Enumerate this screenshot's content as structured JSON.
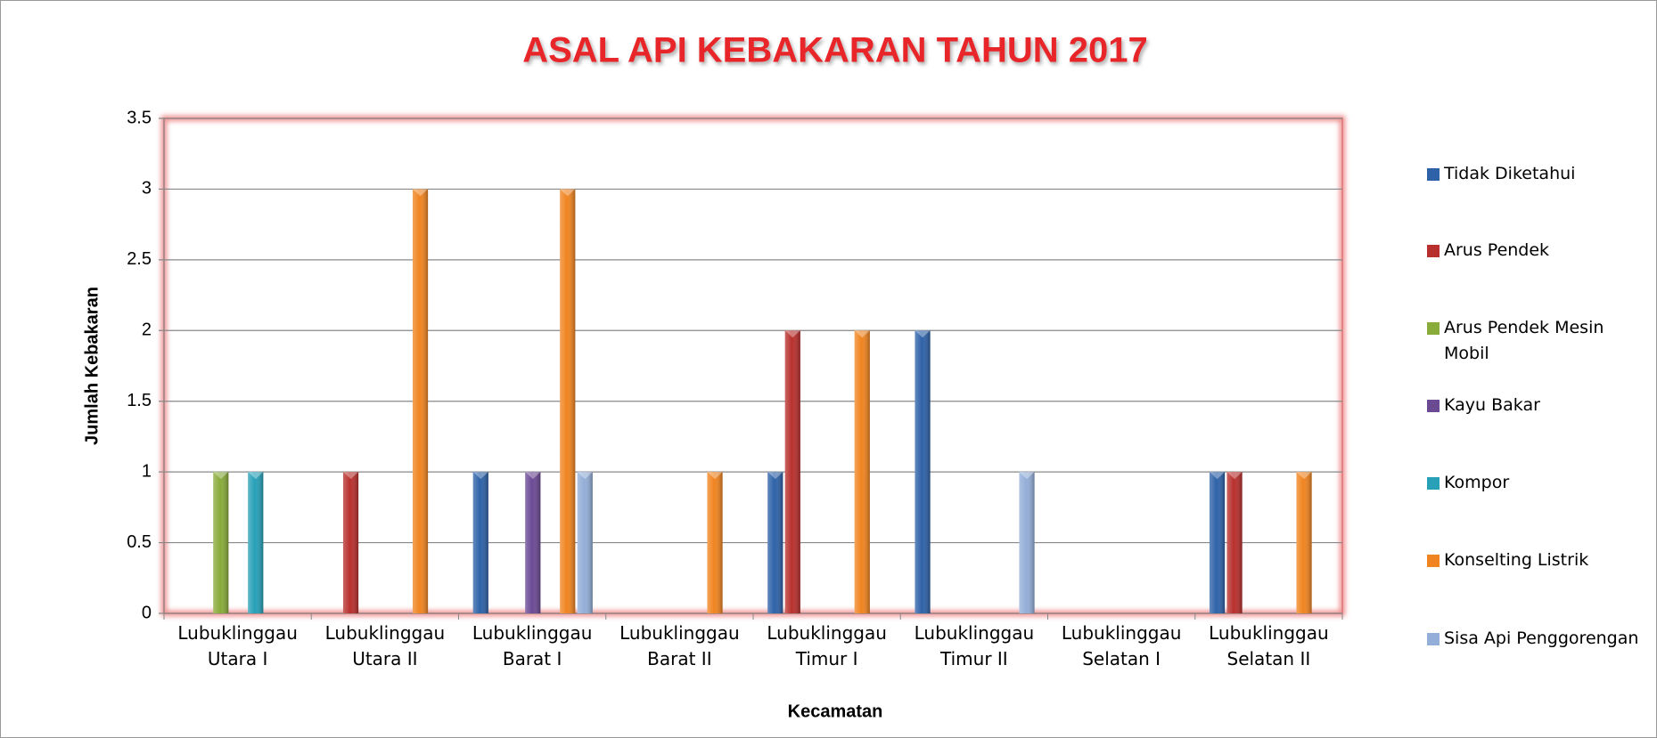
{
  "chart_data": {
    "type": "bar",
    "title": "ASAL API KEBAKARAN TAHUN 2017",
    "x_label": "Kecamatan",
    "y_label": "Jumlah Kebakaran",
    "categories": [
      "Lubuklinggau Utara I",
      "Lubuklinggau Utara II",
      "Lubuklinggau Barat I",
      "Lubuklinggau Barat II",
      "Lubuklinggau Timur I",
      "Lubuklinggau Timur II",
      "Lubuklinggau Selatan I",
      "Lubuklinggau Selatan II"
    ],
    "series": [
      {
        "name": "Tidak Diketahui",
        "color": "#2e62a8",
        "values": [
          0,
          0,
          1,
          0,
          1,
          2,
          0,
          1
        ]
      },
      {
        "name": "Arus Pendek",
        "color": "#b8302d",
        "values": [
          0,
          1,
          0,
          0,
          2,
          0,
          0,
          1
        ]
      },
      {
        "name": "Arus Pendek Mesin Mobil",
        "color": "#88ab3a",
        "values": [
          1,
          0,
          0,
          0,
          0,
          0,
          0,
          0
        ]
      },
      {
        "name": "Kayu Bakar",
        "color": "#6b4a94",
        "values": [
          0,
          0,
          1,
          0,
          0,
          0,
          0,
          0
        ]
      },
      {
        "name": "Kompor",
        "color": "#27a0b8",
        "values": [
          1,
          0,
          0,
          0,
          0,
          0,
          0,
          0
        ]
      },
      {
        "name": "Konselting Listrik",
        "color": "#f08420",
        "values": [
          0,
          3,
          3,
          1,
          2,
          0,
          0,
          1
        ]
      },
      {
        "name": "Sisa Api Penggorengan",
        "color": "#93aed8",
        "values": [
          0,
          0,
          1,
          0,
          0,
          1,
          0,
          0
        ]
      }
    ],
    "ylim": [
      0,
      3.5
    ],
    "yticks": [
      0,
      0.5,
      1,
      1.5,
      2,
      2.5,
      3,
      3.5
    ],
    "grid": true,
    "legend": "right"
  }
}
